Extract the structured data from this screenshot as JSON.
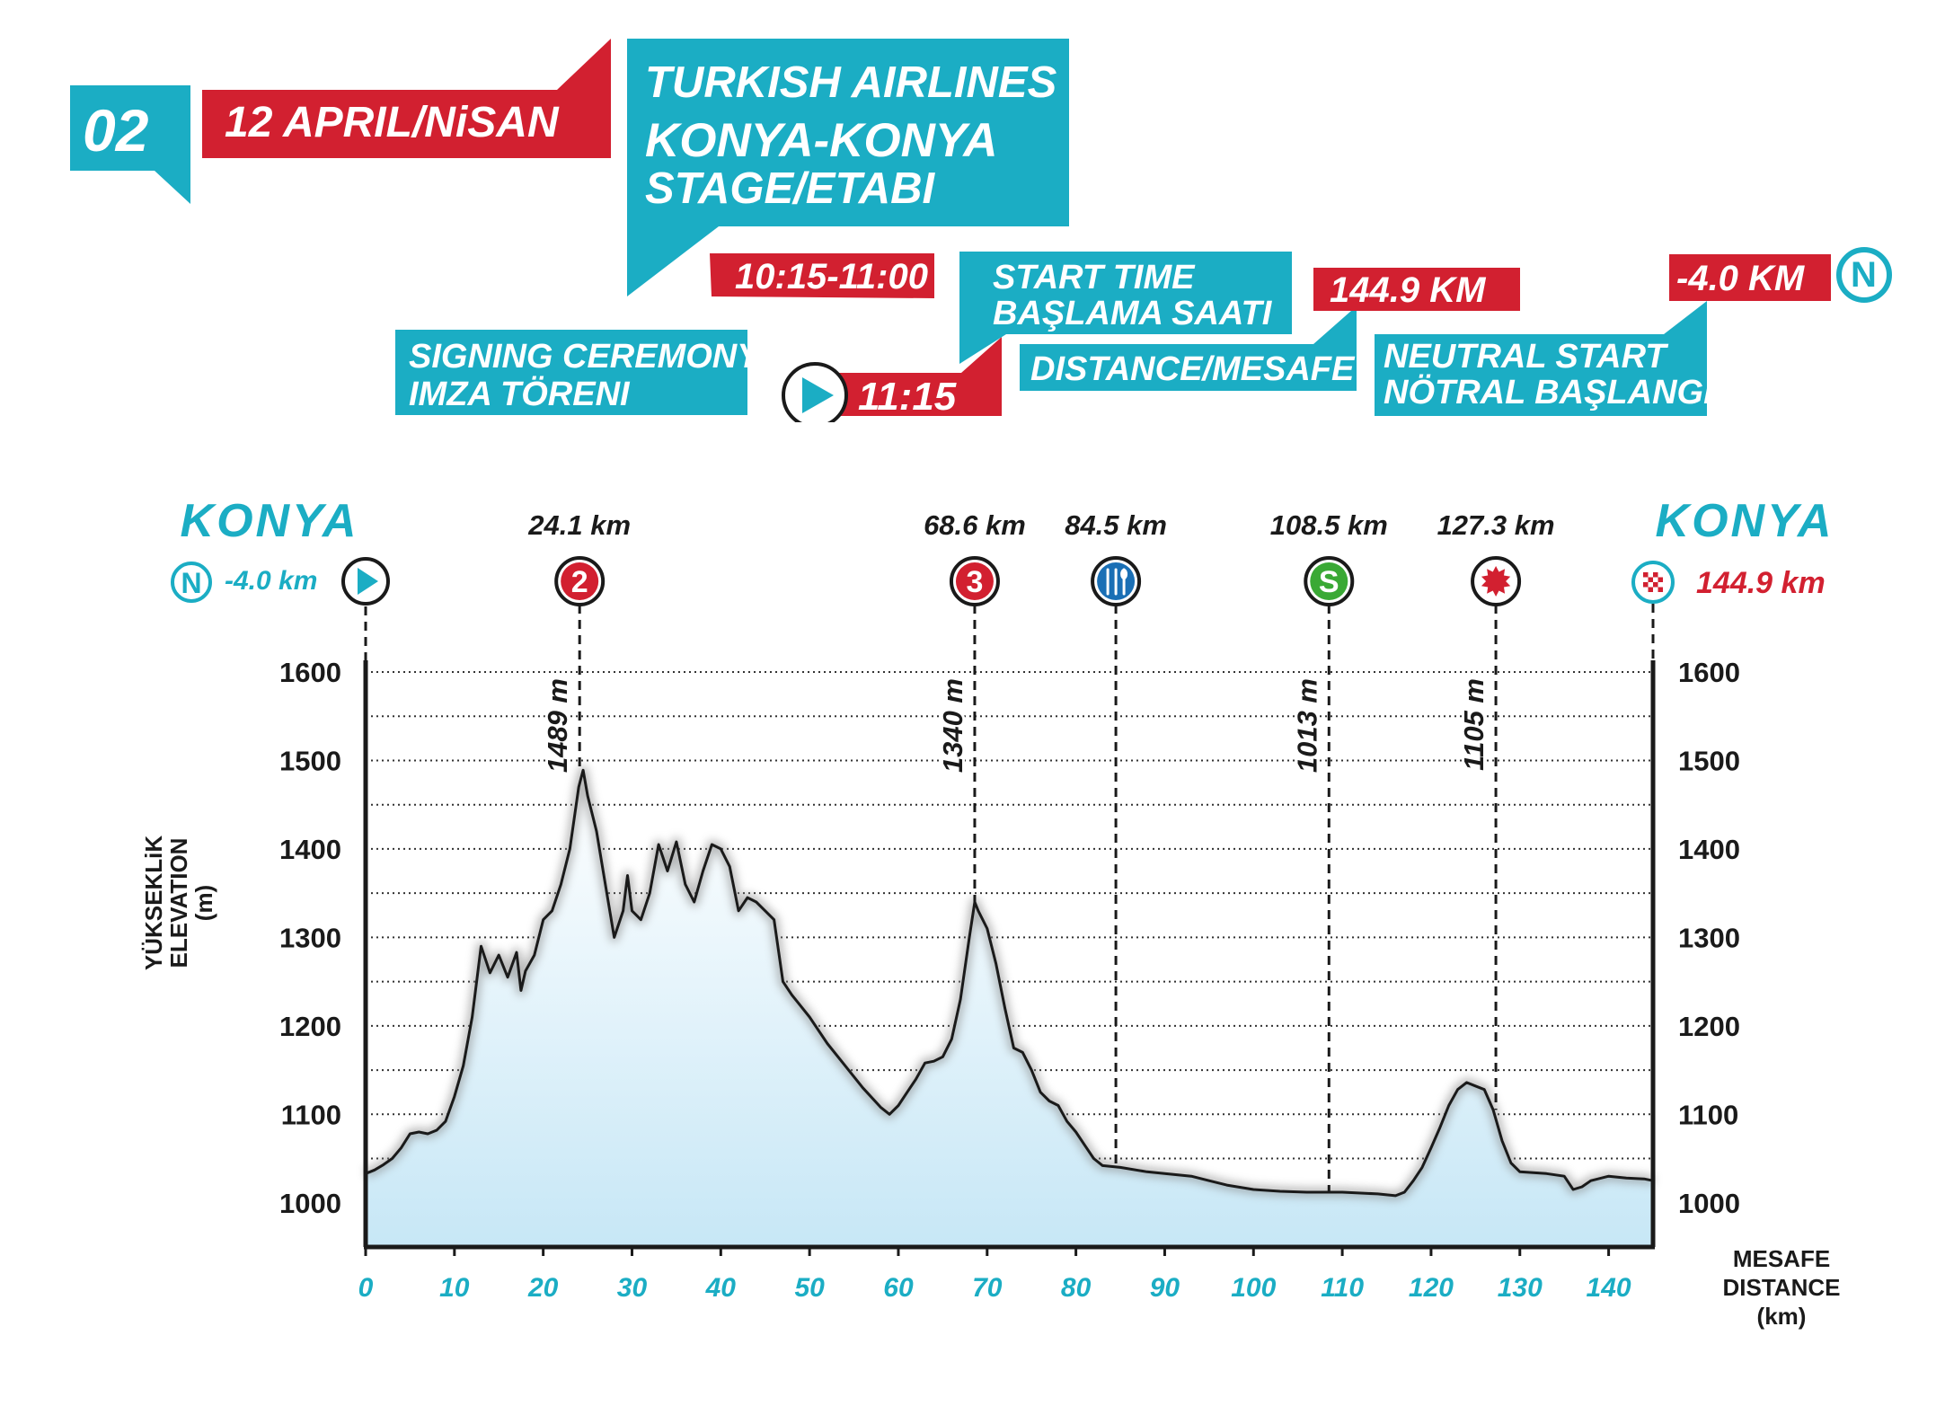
{
  "header": {
    "stage_number": "02",
    "date": "12 APRIL/NiSAN",
    "title_lines": [
      "TURKISH AIRLINES",
      "KONYA-KONYA",
      "STAGE/ETABI"
    ],
    "signing_time": "10:15-11:00",
    "signing_label_lines": [
      "SIGNING CEREMONY",
      "IMZA TÖRENI"
    ],
    "start_time": "11:15",
    "start_label_lines": [
      "START TIME",
      "BAŞLAMA SAATI"
    ],
    "distance_value": "144.9 KM",
    "distance_label": "DISTANCE/MESAFE",
    "neutral_value": "-4.0 KM",
    "neutral_label_lines": [
      "NEUTRAL START",
      "NÖTRAL BAŞLANGIÇ"
    ],
    "neutral_badge": "N"
  },
  "colors": {
    "cyan": "#1badc4",
    "red": "#d22030",
    "dark": "#1a1a1a",
    "green": "#3aa935",
    "blue": "#1a6fb5",
    "fill": "#c7e7f6"
  },
  "icons": {
    "neutral": "neutral-start-icon",
    "start": "start-play-icon",
    "feed": "feed-zone-fork-knife-icon",
    "sprint": "sprint-s-icon",
    "bonus": "bonus-sprint-star-icon",
    "finish": "finish-checkered-flag-icon"
  },
  "chart_data": {
    "type": "area",
    "xlim": [
      0,
      145
    ],
    "ylim": [
      950,
      1600
    ],
    "x_ticks": [
      0,
      10,
      20,
      30,
      40,
      50,
      60,
      70,
      80,
      90,
      100,
      110,
      120,
      130,
      140
    ],
    "y_ticks": [
      1000,
      1100,
      1200,
      1300,
      1400,
      1500,
      1600
    ],
    "y_minor_gridlines": [
      1050,
      1150,
      1250,
      1350,
      1450,
      1550
    ],
    "gridlines": "dotted horizontal",
    "ylabel_lines": [
      "YÜKSEKLiK",
      "ELEVATION",
      "(m)"
    ],
    "xlabel_lines": [
      "MESAFE",
      "DISTANCE",
      "(km)"
    ],
    "start_city": "KONYA",
    "finish_city": "KONYA",
    "neutral_label": "-4.0 km",
    "finish_label": "144.9 km",
    "points": [
      {
        "x": 24.1,
        "label": "24.1 km",
        "marker": "2",
        "elevation": 1489,
        "elev_label": "1489 m",
        "kind": "climb"
      },
      {
        "x": 68.6,
        "label": "68.6 km",
        "marker": "3",
        "elevation": 1340,
        "elev_label": "1340 m",
        "kind": "climb"
      },
      {
        "x": 84.5,
        "label": "84.5 km",
        "marker": "",
        "elevation": 1040,
        "elev_label": "",
        "kind": "feed"
      },
      {
        "x": 108.5,
        "label": "108.5 km",
        "marker": "S",
        "elevation": 1013,
        "elev_label": "1013 m",
        "kind": "sprint"
      },
      {
        "x": 127.3,
        "label": "127.3 km",
        "marker": "",
        "elevation": 1105,
        "elev_label": "1105 m",
        "kind": "bonus"
      }
    ],
    "profile": [
      [
        0,
        1033
      ],
      [
        1,
        1037
      ],
      [
        2,
        1043
      ],
      [
        3,
        1050
      ],
      [
        4,
        1062
      ],
      [
        5,
        1078
      ],
      [
        6,
        1080
      ],
      [
        7,
        1078
      ],
      [
        8,
        1082
      ],
      [
        9,
        1092
      ],
      [
        10,
        1120
      ],
      [
        11,
        1155
      ],
      [
        12,
        1210
      ],
      [
        13,
        1290
      ],
      [
        14,
        1260
      ],
      [
        15,
        1280
      ],
      [
        16,
        1255
      ],
      [
        17,
        1283
      ],
      [
        17.5,
        1240
      ],
      [
        18,
        1262
      ],
      [
        19,
        1280
      ],
      [
        20,
        1320
      ],
      [
        21,
        1330
      ],
      [
        22,
        1360
      ],
      [
        23,
        1400
      ],
      [
        24,
        1470
      ],
      [
        24.5,
        1489
      ],
      [
        25,
        1460
      ],
      [
        26,
        1420
      ],
      [
        27,
        1360
      ],
      [
        28,
        1300
      ],
      [
        29,
        1330
      ],
      [
        29.5,
        1370
      ],
      [
        30,
        1330
      ],
      [
        31,
        1320
      ],
      [
        32,
        1350
      ],
      [
        33,
        1405
      ],
      [
        34,
        1375
      ],
      [
        35,
        1408
      ],
      [
        36,
        1360
      ],
      [
        37,
        1340
      ],
      [
        38,
        1375
      ],
      [
        39,
        1405
      ],
      [
        40,
        1400
      ],
      [
        41,
        1380
      ],
      [
        42,
        1330
      ],
      [
        43,
        1345
      ],
      [
        44,
        1340
      ],
      [
        45,
        1330
      ],
      [
        46,
        1320
      ],
      [
        47,
        1250
      ],
      [
        48,
        1235
      ],
      [
        50,
        1210
      ],
      [
        52,
        1180
      ],
      [
        54,
        1155
      ],
      [
        56,
        1130
      ],
      [
        58,
        1108
      ],
      [
        59,
        1100
      ],
      [
        60,
        1110
      ],
      [
        61,
        1125
      ],
      [
        62,
        1140
      ],
      [
        63,
        1158
      ],
      [
        64,
        1160
      ],
      [
        65,
        1165
      ],
      [
        66,
        1185
      ],
      [
        67,
        1230
      ],
      [
        68,
        1300
      ],
      [
        68.6,
        1340
      ],
      [
        69,
        1330
      ],
      [
        70,
        1310
      ],
      [
        71,
        1270
      ],
      [
        72,
        1220
      ],
      [
        73,
        1175
      ],
      [
        74,
        1170
      ],
      [
        75,
        1150
      ],
      [
        76,
        1125
      ],
      [
        77,
        1115
      ],
      [
        78,
        1110
      ],
      [
        79,
        1092
      ],
      [
        80,
        1080
      ],
      [
        81,
        1065
      ],
      [
        82,
        1050
      ],
      [
        83,
        1042
      ],
      [
        85,
        1040
      ],
      [
        88,
        1035
      ],
      [
        90,
        1033
      ],
      [
        93,
        1030
      ],
      [
        95,
        1025
      ],
      [
        97,
        1020
      ],
      [
        100,
        1015
      ],
      [
        103,
        1013
      ],
      [
        106,
        1012
      ],
      [
        110,
        1012
      ],
      [
        114,
        1010
      ],
      [
        116,
        1008
      ],
      [
        117,
        1012
      ],
      [
        118,
        1025
      ],
      [
        119,
        1040
      ],
      [
        120,
        1062
      ],
      [
        121,
        1085
      ],
      [
        122,
        1110
      ],
      [
        123,
        1128
      ],
      [
        124,
        1136
      ],
      [
        125,
        1132
      ],
      [
        126,
        1128
      ],
      [
        127,
        1105
      ],
      [
        128,
        1070
      ],
      [
        129,
        1045
      ],
      [
        130,
        1035
      ],
      [
        133,
        1033
      ],
      [
        135,
        1030
      ],
      [
        136,
        1015
      ],
      [
        137,
        1018
      ],
      [
        138,
        1025
      ],
      [
        140,
        1030
      ],
      [
        142,
        1028
      ],
      [
        144,
        1027
      ],
      [
        145,
        1025
      ]
    ]
  }
}
